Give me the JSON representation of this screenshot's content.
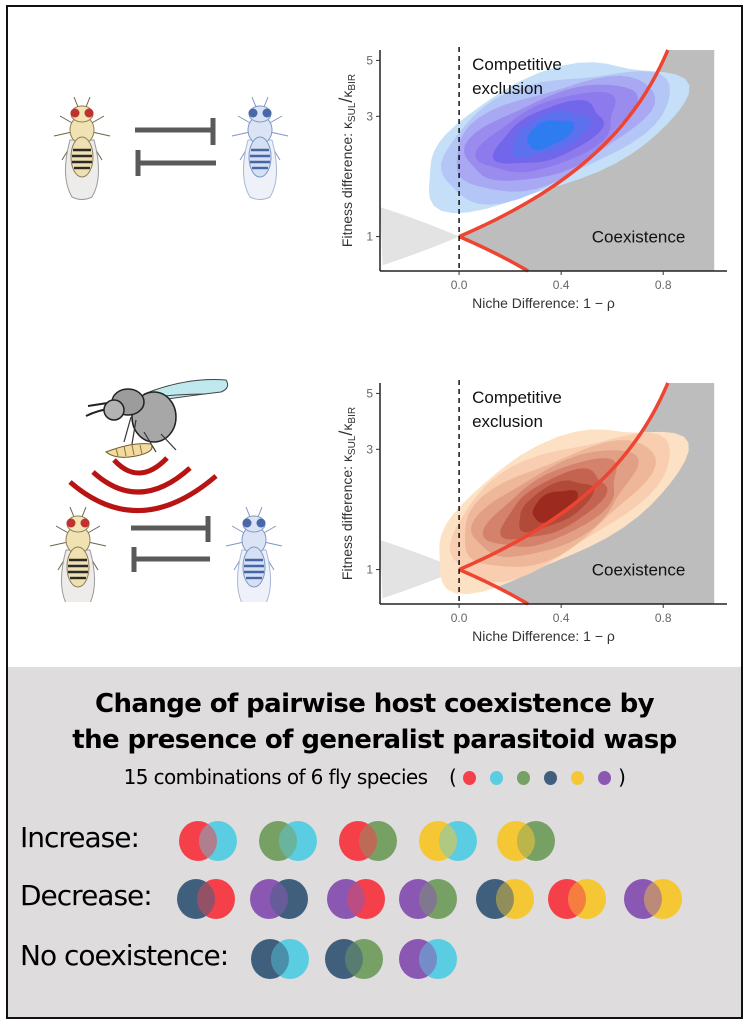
{
  "species_colors": {
    "red": "#f5404a",
    "cyan": "#5acde2",
    "green": "#77a064",
    "navy": "#3f5f7d",
    "yellow": "#f5c734",
    "purple": "#8a58b3"
  },
  "illustrations": {
    "top": {
      "fly_left": "fly-icon-tan",
      "fly_right": "fly-icon-blue",
      "interaction": "mutual-inhibition-arrows"
    },
    "bottom": {
      "wasp": "parasitoid-wasp-icon",
      "signal": "signal-arcs-icon",
      "fly_left": "fly-icon-tan",
      "fly_right": "fly-icon-blue",
      "interaction": "mutual-inhibition-arrows"
    }
  },
  "chart_data": [
    {
      "type": "area",
      "name": "without-parasitoid",
      "xlabel": "Niche Difference: 1 − ρ",
      "ylabel_main": "Fitness difference: κ",
      "ylabel_sub1": "SUL",
      "ylabel_slash": "/",
      "ylabel_k2": "κ",
      "ylabel_sub2": "BIR",
      "xlim": [
        -0.31,
        1.05
      ],
      "ylim": [
        0.73,
        5.5
      ],
      "yscale": "log",
      "xticks": [
        {
          "value": 0.0,
          "label": "0.0"
        },
        {
          "value": 0.4,
          "label": "0.4"
        },
        {
          "value": 0.8,
          "label": "0.8"
        }
      ],
      "yticks": [
        {
          "value": 1,
          "label": "1"
        },
        {
          "value": 3,
          "label": "3"
        },
        {
          "value": 5,
          "label": "5"
        }
      ],
      "region_labels": {
        "exclusion_line1": "Competitive",
        "exclusion_line2": "exclusion",
        "coexistence": "Coexistence"
      },
      "boundary": {
        "upper": "1/(1-x)",
        "lower": "1-x",
        "color": "#ee4431"
      },
      "vline_x": 0,
      "density": {
        "center_x": 0.33,
        "center_y": 2.5,
        "palette": [
          "#c5dff8",
          "#b3c6f5",
          "#a8a9f2",
          "#9a8cee",
          "#8d7aec",
          "#7266ea",
          "#5d70ee",
          "#2f7bf0"
        ]
      }
    },
    {
      "type": "area",
      "name": "with-parasitoid",
      "xlabel": "Niche Difference: 1 − ρ",
      "ylabel_main": "Fitness difference: κ",
      "ylabel_sub1": "SUL",
      "ylabel_slash": "/",
      "ylabel_k2": "κ",
      "ylabel_sub2": "BIR",
      "xlim": [
        -0.31,
        1.05
      ],
      "ylim": [
        0.73,
        5.5
      ],
      "yscale": "log",
      "xticks": [
        {
          "value": 0.0,
          "label": "0.0"
        },
        {
          "value": 0.4,
          "label": "0.4"
        },
        {
          "value": 0.8,
          "label": "0.8"
        }
      ],
      "yticks": [
        {
          "value": 1,
          "label": "1"
        },
        {
          "value": 3,
          "label": "3"
        },
        {
          "value": 5,
          "label": "5"
        }
      ],
      "region_labels": {
        "exclusion_line1": "Competitive",
        "exclusion_line2": "exclusion",
        "coexistence": "Coexistence"
      },
      "boundary": {
        "upper": "1/(1-x)",
        "lower": "1-x",
        "color": "#ee4431"
      },
      "vline_x": 0,
      "density": {
        "center_x": 0.35,
        "center_y": 1.75,
        "palette": [
          "#fde1c4",
          "#f8cdb0",
          "#eeb79a",
          "#e19f85",
          "#d4826c",
          "#c4634f",
          "#b24a39",
          "#9c2a1e"
        ]
      }
    }
  ],
  "summary": {
    "title_line1": "Change of pairwise host coexistence by",
    "title_line2": "the presence of generalist parasitoid wasp",
    "subtitle": "15 combinations of 6 fly species",
    "paren_open": "(",
    "paren_close": ")",
    "legend_dots": [
      "red",
      "cyan",
      "green",
      "navy",
      "yellow",
      "purple"
    ],
    "rows": [
      {
        "label": "Increase:",
        "pairs": [
          [
            "red",
            "cyan"
          ],
          [
            "green",
            "cyan"
          ],
          [
            "red",
            "green"
          ],
          [
            "yellow",
            "cyan"
          ],
          [
            "yellow",
            "green"
          ]
        ]
      },
      {
        "label": "Decrease:",
        "pairs": [
          [
            "navy",
            "red"
          ],
          [
            "purple",
            "navy"
          ],
          [
            "purple",
            "red"
          ],
          [
            "purple",
            "green"
          ],
          [
            "navy",
            "yellow"
          ],
          [
            "red",
            "yellow"
          ],
          [
            "purple",
            "yellow"
          ]
        ]
      },
      {
        "label": "No coexistence:",
        "pairs": [
          [
            "navy",
            "cyan"
          ],
          [
            "navy",
            "green"
          ],
          [
            "purple",
            "cyan"
          ]
        ]
      }
    ]
  }
}
